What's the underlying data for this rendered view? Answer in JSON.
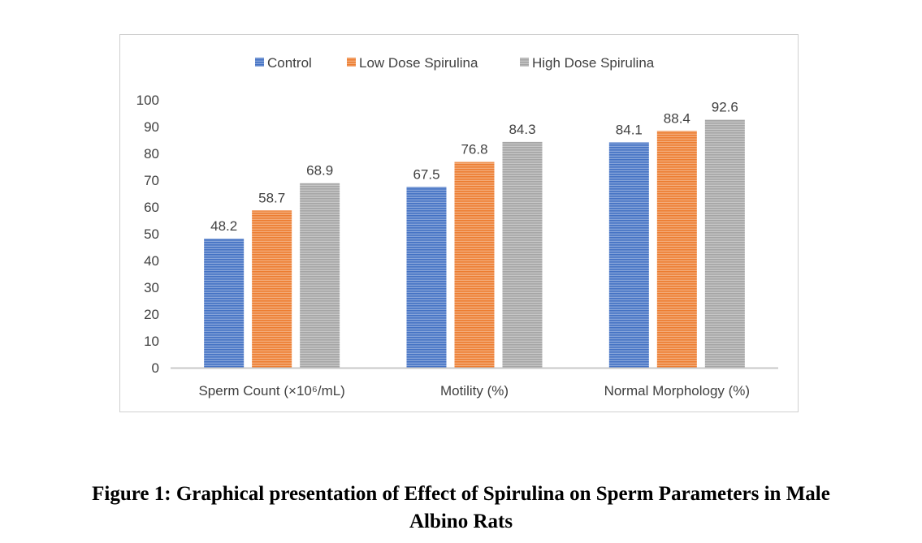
{
  "chart_data": {
    "type": "bar",
    "categories": [
      "Sperm Count (×10⁶/mL)",
      "Motility (%)",
      "Normal Morphology (%)"
    ],
    "series": [
      {
        "name": "Control",
        "values": [
          48.2,
          67.5,
          84.1
        ],
        "color": "#4472C4"
      },
      {
        "name": "Low Dose Spirulina",
        "values": [
          58.7,
          76.8,
          88.4
        ],
        "color": "#ED7D31"
      },
      {
        "name": "High Dose Spirulina",
        "values": [
          68.9,
          84.3,
          92.6
        ],
        "color": "#A5A5A5"
      }
    ],
    "y_ticks": [
      "0",
      "10",
      "20",
      "30",
      "40",
      "50",
      "60",
      "70",
      "80",
      "90",
      "100"
    ],
    "ylim": [
      0,
      100
    ],
    "legend_position": "top",
    "grid": false,
    "bar_fill": "horizontal-stripes"
  },
  "caption": {
    "line1": "Figure 1: Graphical presentation of Effect of Spirulina on Sperm Parameters in Male",
    "line2": "Albino Rats"
  }
}
